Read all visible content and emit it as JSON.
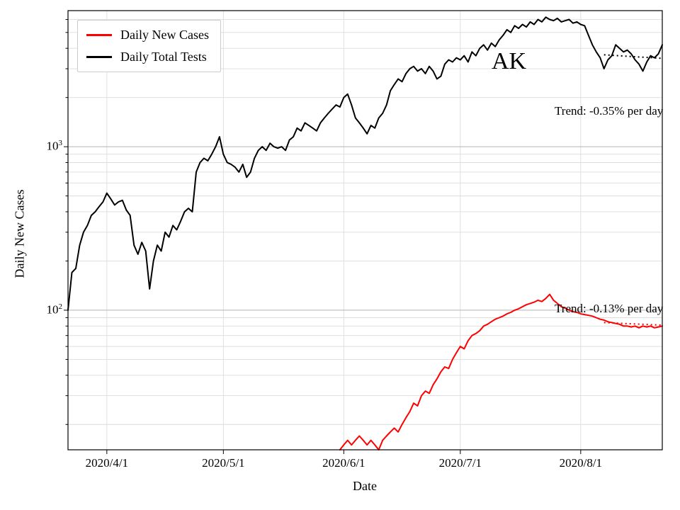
{
  "figure": {
    "ylabel": "Daily New Cases",
    "xlabel": "Date",
    "state_label": "AK"
  },
  "chart_data": {
    "type": "line",
    "title": "",
    "xlabel": "Date",
    "ylabel": "Daily New Cases",
    "y_scale": "log",
    "ylim": [
      14,
      6800
    ],
    "grid": true,
    "legend_position": "upper left",
    "start_date": "2020-03-22",
    "x_ticks": [
      {
        "label": "2020/4/1",
        "day": 10
      },
      {
        "label": "2020/5/1",
        "day": 40
      },
      {
        "label": "2020/6/1",
        "day": 71
      },
      {
        "label": "2020/7/1",
        "day": 101
      },
      {
        "label": "2020/8/1",
        "day": 132
      }
    ],
    "y_ticks": [
      {
        "value": 1000,
        "base": "10",
        "exp": "3"
      },
      {
        "value": 100,
        "base": "10",
        "exp": "2"
      }
    ],
    "series": [
      {
        "name": "Daily New Cases",
        "color": "#ff0000",
        "values": [
          null,
          null,
          null,
          null,
          null,
          null,
          null,
          null,
          null,
          null,
          null,
          null,
          null,
          null,
          null,
          null,
          null,
          null,
          null,
          null,
          null,
          null,
          null,
          null,
          null,
          null,
          null,
          null,
          null,
          null,
          null,
          null,
          null,
          null,
          null,
          null,
          null,
          null,
          null,
          null,
          null,
          null,
          null,
          null,
          null,
          null,
          null,
          null,
          null,
          null,
          null,
          null,
          null,
          null,
          null,
          null,
          null,
          null,
          null,
          null,
          null,
          null,
          null,
          null,
          null,
          null,
          null,
          null,
          null,
          null,
          14,
          15,
          16,
          15,
          16,
          17,
          16,
          15,
          16,
          15,
          14,
          16,
          17,
          18,
          19,
          18,
          20,
          22,
          24,
          27,
          26,
          30,
          32,
          31,
          35,
          38,
          42,
          45,
          44,
          50,
          55,
          60,
          58,
          65,
          70,
          72,
          75,
          80,
          82,
          85,
          88,
          90,
          92,
          95,
          97,
          100,
          102,
          105,
          108,
          110,
          112,
          115,
          113,
          118,
          125,
          115,
          110,
          105,
          103,
          100,
          98,
          97,
          95,
          94,
          93,
          92,
          90,
          88,
          87,
          85,
          84,
          83,
          82,
          80,
          80,
          79,
          80,
          78,
          80,
          79,
          80,
          78,
          79,
          80
        ]
      },
      {
        "name": "Daily Total Tests",
        "color": "#000000",
        "values": [
          100,
          170,
          180,
          250,
          300,
          330,
          380,
          400,
          430,
          460,
          520,
          480,
          440,
          460,
          470,
          410,
          380,
          250,
          220,
          260,
          230,
          135,
          200,
          250,
          230,
          300,
          280,
          330,
          310,
          350,
          400,
          420,
          400,
          700,
          800,
          850,
          820,
          900,
          1000,
          1150,
          900,
          800,
          780,
          750,
          700,
          780,
          650,
          700,
          850,
          950,
          1000,
          950,
          1050,
          1000,
          980,
          1000,
          950,
          1100,
          1150,
          1300,
          1250,
          1400,
          1350,
          1300,
          1250,
          1400,
          1500,
          1600,
          1700,
          1800,
          1750,
          2000,
          2100,
          1800,
          1500,
          1400,
          1300,
          1200,
          1350,
          1300,
          1500,
          1600,
          1800,
          2200,
          2400,
          2600,
          2500,
          2800,
          3000,
          3100,
          2900,
          3000,
          2800,
          3100,
          2900,
          2600,
          2700,
          3200,
          3400,
          3300,
          3500,
          3400,
          3600,
          3300,
          3800,
          3600,
          4000,
          4200,
          3900,
          4300,
          4100,
          4500,
          4800,
          5200,
          5000,
          5500,
          5300,
          5600,
          5400,
          5800,
          5600,
          6000,
          5800,
          6200,
          6000,
          5900,
          6100,
          5800,
          5900,
          6000,
          5700,
          5800,
          5600,
          5500,
          4800,
          4200,
          3800,
          3500,
          3000,
          3400,
          3600,
          4200,
          4000,
          3800,
          3900,
          3700,
          3400,
          3200,
          2900,
          3300,
          3600,
          3500,
          3700,
          4200
        ]
      }
    ],
    "trend_lines": [
      {
        "series": "Daily Total Tests",
        "label": "Trend: -0.35% per day",
        "color": "#000000",
        "style": "dotted",
        "points": [
          [
            138,
            3650
          ],
          [
            153,
            3470
          ]
        ]
      },
      {
        "series": "Daily New Cases",
        "label": "Trend: -0.13% per day",
        "color": "#ff0000",
        "style": "dotted",
        "points": [
          [
            138,
            84
          ],
          [
            153,
            81
          ]
        ]
      }
    ]
  }
}
